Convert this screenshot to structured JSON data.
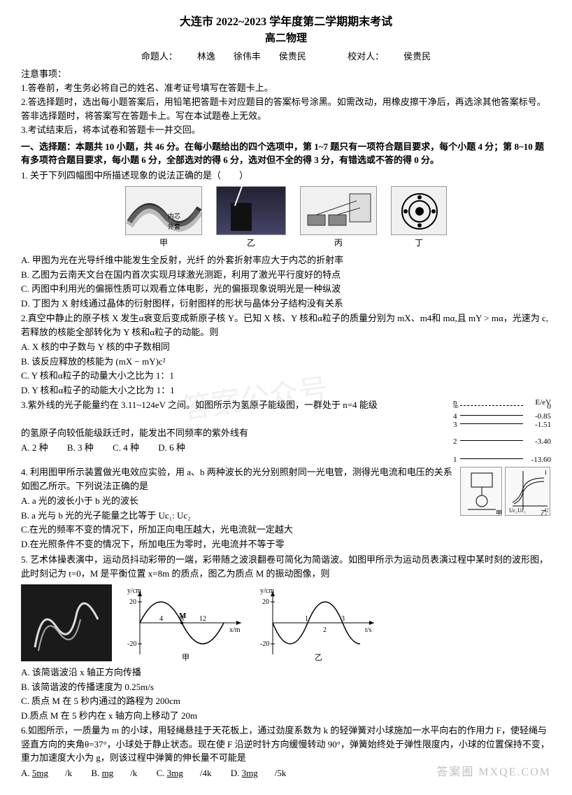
{
  "header": {
    "main_title": "大连市 2022~2023 学年度第二学期期末考试",
    "sub_title": "高二物理",
    "credit_label_author": "命题人：",
    "authors": "林逸　　徐伟丰　　侯贵民",
    "credit_label_reviewer": "校对人：",
    "reviewer": "侯贵民"
  },
  "notice": {
    "label": "注意事项：",
    "items": [
      "1.答卷前，考生务必将自己的姓名、准考证号填写在答题卡上。",
      "2.答选择题时，选出每小题答案后，用铅笔把答题卡对应题目的答案标号涂黑。如需改动，用橡皮擦干净后，再选涂其他答案标号。答非选择题时，将答案写在答题卡上。写在本试题卷上无效。",
      "3.考试结束后，将本试卷和答题卡一并交回。"
    ]
  },
  "section1_head": "一、选择题：本题共 10 小题，共 46 分。在每小题给出的四个选项中，第 1~7 题只有一项符合题目要求，每个小题 4 分；第 8~10 题有多项符合题目要求，每小题 6 分，全部选对的得 6 分，选对但不全的得 3 分，有错选或不答的得 0 分。",
  "q1": {
    "stem": "1. 关于下列四幅图中所描述现象的说法正确的是（　　）",
    "fig_caps": [
      "甲",
      "乙",
      "丙",
      "丁"
    ],
    "fig_labels": [
      "内芯 外套",
      "",
      "",
      ""
    ],
    "opts": [
      "A. 甲图为光在光导纤维中能发生全反射，光纤 的外套折射率应大于内芯的折射率",
      "B. 乙图为云南天文台在国内首次实现月球激光测距，利用了激光平行度好的特点",
      "C. 丙图中利用光的偏振性质可以观看立体电影，光的偏振现象说明光是一种纵波",
      "D. 丁图为 X 射线通过晶体的衍射图样，衍射图样的形状与晶体分子结构没有关系"
    ]
  },
  "q2": {
    "stem": "2.真空中静止的原子核 X 发生α衰变后变成新原子核 Y。已知 X 核、Y 核和α粒子的质量分别为 mX、m4和 mα,且 mY > mα，光速为 c,  若释放的核能全部转化为 Y 核和α粒子的动能。则",
    "opts": [
      "A. X 核的中子数与 Y 核的中子数相同",
      "B. 该反应释放的核能为 (mX − mY)c²",
      "C. Y 核和α粒子的动量大小之比为 1：1",
      "D. Y 核和α粒子的动能大小之比为 1：1"
    ]
  },
  "q3": {
    "stem_a": "3.紫外线的光子能量约在 3.11~124eV 之间。如图所示为氢原子能级图，一群处于 n=4 能级",
    "stem_b": "的氢原子向较低能级跃迁时，能发出不同频率的紫外线有",
    "opts_inline": [
      "A. 2 种",
      "B. 3 种",
      "C. 4 种",
      "D. 6 种"
    ],
    "diagram": {
      "n_label": "n",
      "e_label": "E/eV",
      "levels": [
        {
          "n": "∞",
          "e": "0",
          "y": 8,
          "dashed": true
        },
        {
          "n": "4",
          "e": "-0.85",
          "y": 22,
          "dashed": false
        },
        {
          "n": "3",
          "e": "-1.51",
          "y": 34,
          "dashed": false
        },
        {
          "n": "2",
          "e": "-3.40",
          "y": 58,
          "dashed": false
        },
        {
          "n": "1",
          "e": "-13.60",
          "y": 84,
          "dashed": false
        }
      ]
    }
  },
  "q4": {
    "stem": "4. 利用图甲所示装置做光电效应实验，用 a、b 两种波长的光分别照射同一光电管，测得光电流和电压的关系如图乙所示。下列说法正确的是",
    "opts": [
      "A. a 光的波长小于 b 光的波长",
      "B. a 光与 b 光的光子能量之比等于 Uc₁: Uc₂",
      "C.在光的频率不变的情况下，所加正向电压越大，光电流就一定越大",
      "D.在光照条件不变的情况下，所加电压为零时，光电流并不等于零"
    ],
    "fig_caps": [
      "甲",
      "乙"
    ]
  },
  "q5": {
    "stem": "5. 艺术体操表演中，运动员抖动彩带的一端，彩带随之波浪翻卷可简化为简谐波。如图甲所示为运动员表演过程中某时刻的波形图，此时刻记为 t=0，M 是平衡位置 x=8m 的质点，图乙为质点 M 的振动图像，则",
    "wave1": {
      "ylabel": "y/cm",
      "xlabel": "x/m",
      "amp": 20,
      "xmax": 12,
      "period": 8,
      "xticks": [
        "4",
        "8",
        "12"
      ],
      "yticks": [
        "20",
        "-20"
      ],
      "m_label": "M",
      "cap": "甲"
    },
    "wave2": {
      "ylabel": "y/cm",
      "xlabel": "t/s",
      "amp": 20,
      "xmax": 3,
      "period": 2,
      "xticks": [
        "1",
        "2",
        "3"
      ],
      "yticks": [
        "20",
        "-20"
      ],
      "cap": "乙"
    },
    "opts": [
      "A. 该简谐波沿 x 轴正方向传播",
      "B. 该简谐波的传播速度为 0.25m/s",
      "C. 质点 M 在 5 秒内通过的路程为 200cm",
      "D.质点 M 在 5 秒内在 x 轴方向上移动了 20m"
    ]
  },
  "q6": {
    "stem": "6.如图所示，一质量为 m 的小球，用轻绳悬挂于天花板上，通过劲度系数为 k 的轻弹簧对小球施加一水平向右的作用力 F，使轻绳与竖直方向的夹角θ=37°，小球处于静止状态。现在使 F 沿逆时针方向缓慢转动 90°，弹簧始终处于弹性限度内，小球的位置保持不变，重力加速度大小为 g，则该过程中弹簧的伸长量不可能是",
    "opts_inline": [
      "A. 5mg/k",
      "B. mg/k",
      "C. 3mg/4k",
      "D. 3mg/5k"
    ]
  },
  "watermarks": {
    "wm1": "答案公众号",
    "wm2": "答案圈 MXQE.COM",
    "wm3": "高二物理"
  }
}
